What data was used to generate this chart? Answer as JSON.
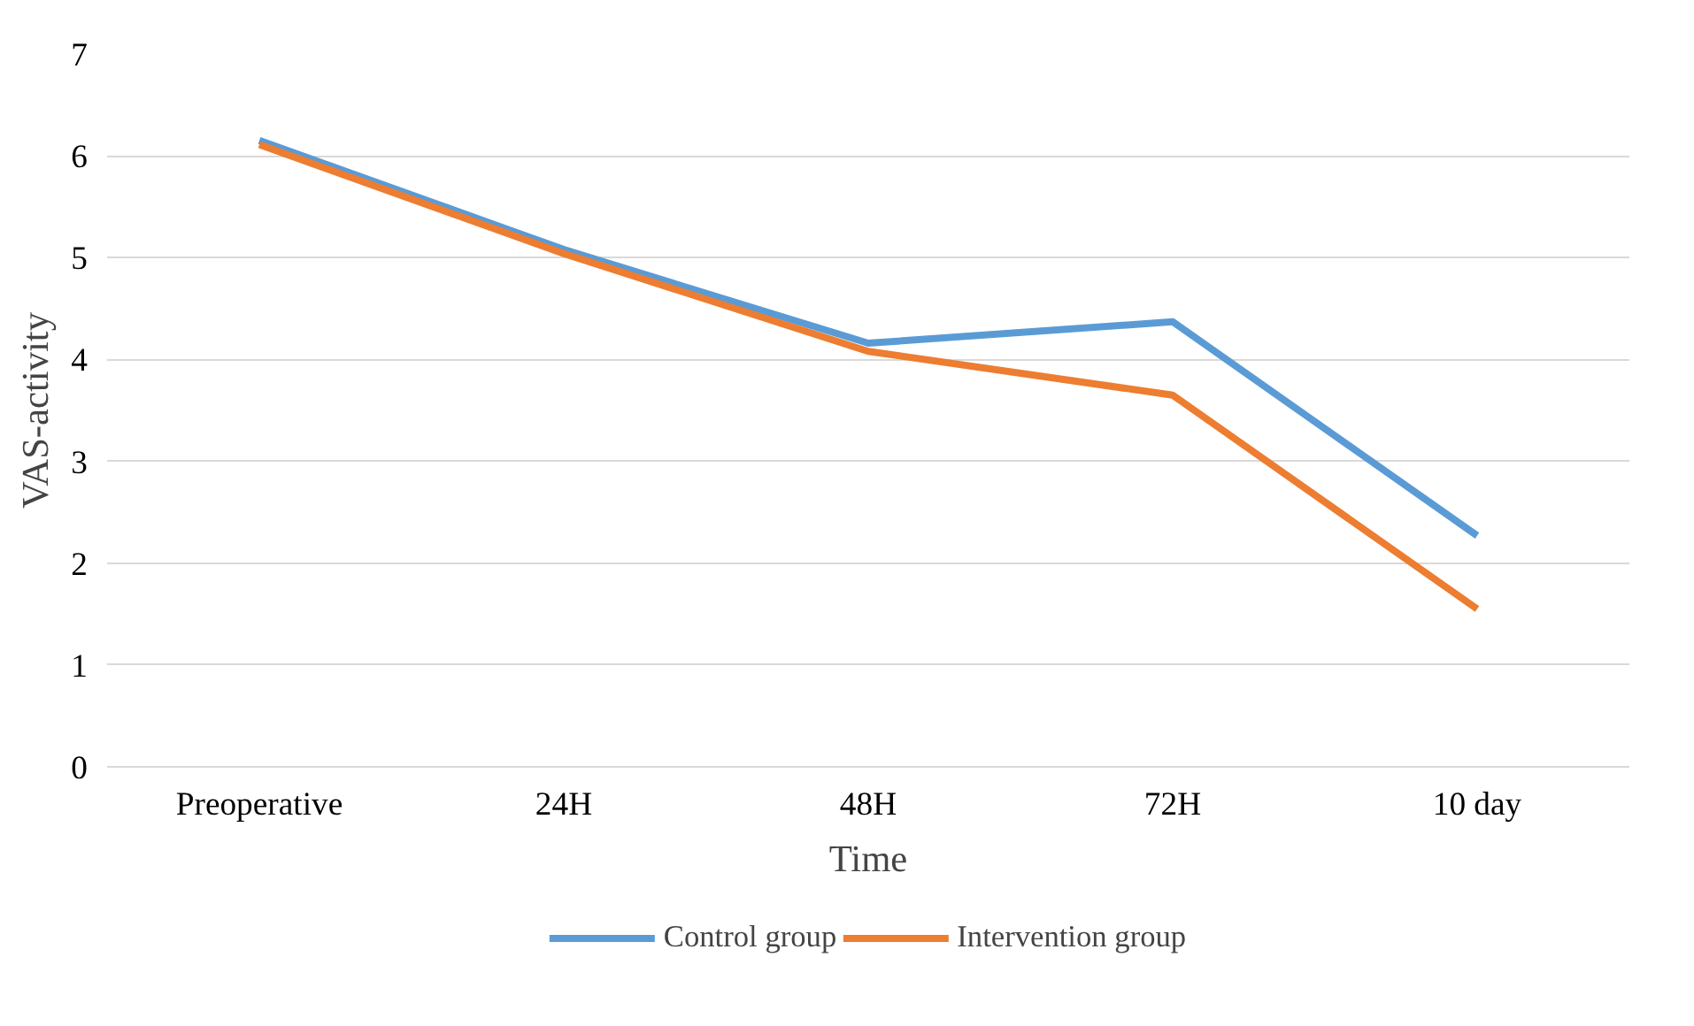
{
  "chart_data": {
    "type": "line",
    "xlabel": "Time",
    "ylabel": "VAS-activity",
    "categories": [
      "Preoperative",
      "24H",
      "48H",
      "72H",
      "10 day"
    ],
    "series": [
      {
        "name": "Control group",
        "color": "#5b9bd5",
        "values": [
          6.15,
          5.08,
          4.16,
          4.37,
          2.27
        ]
      },
      {
        "name": "Intervention group",
        "color": "#ed7d31",
        "values": [
          6.11,
          5.04,
          4.08,
          3.65,
          1.55
        ]
      }
    ],
    "ylim": [
      0,
      7
    ],
    "yticks": [
      0,
      1,
      2,
      3,
      4,
      5,
      6,
      7
    ],
    "grid": "y",
    "legend": "bottom",
    "marker": "none",
    "line_style": "solid"
  }
}
